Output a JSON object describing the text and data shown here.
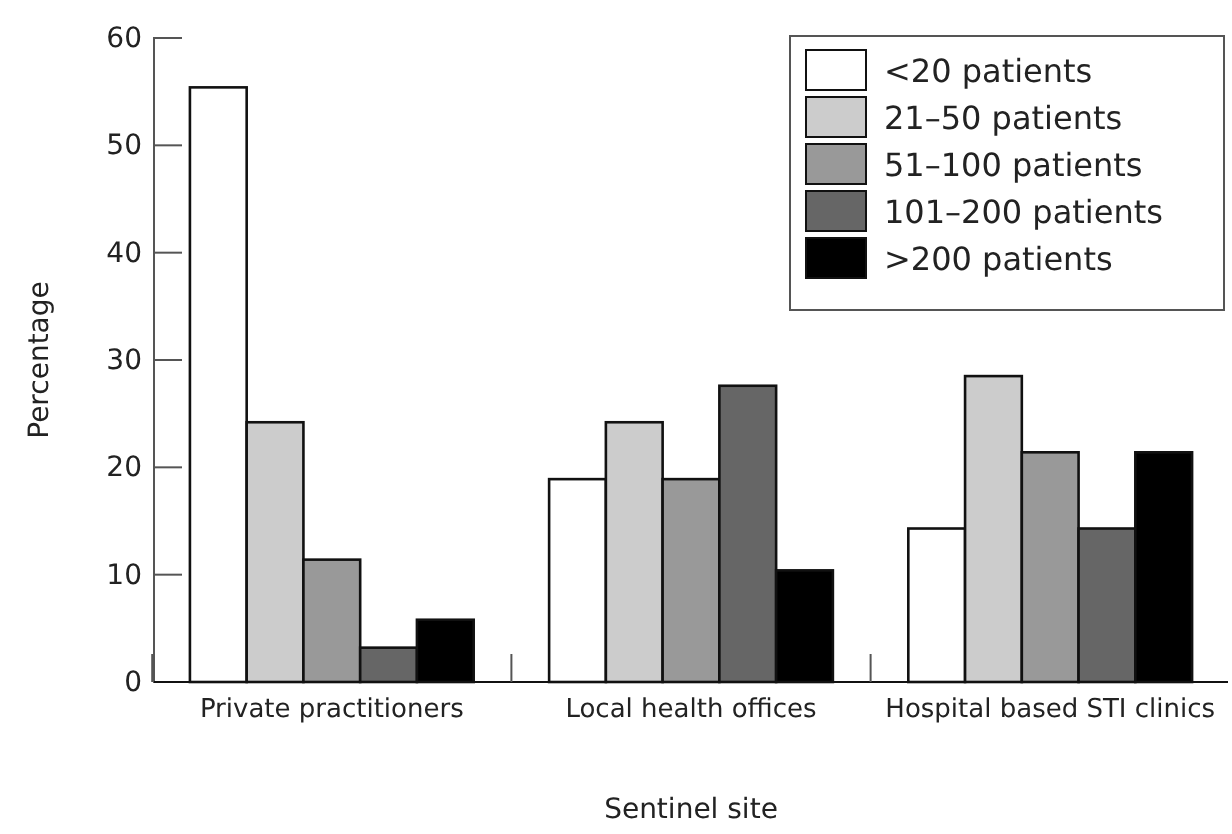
{
  "chart_data": {
    "type": "bar",
    "xlabel": "Sentinel site",
    "ylabel": "Percentage",
    "categories": [
      "Private practitioners",
      "Local health offices",
      "Hospital based STI clinics"
    ],
    "series": [
      {
        "name": "<20 patients",
        "color": "#ffffff",
        "values": [
          55.4,
          18.9,
          14.3
        ]
      },
      {
        "name": "21–50 patients",
        "color": "#cccccc",
        "values": [
          24.2,
          24.2,
          28.5
        ]
      },
      {
        "name": "51–100 patients",
        "color": "#999999",
        "values": [
          11.4,
          18.9,
          21.4
        ]
      },
      {
        "name": "101–200 patients",
        "color": "#666666",
        "values": [
          3.2,
          27.6,
          14.3
        ]
      },
      {
        "name": ">200 patients",
        "color": "#000000",
        "values": [
          5.8,
          10.4,
          21.4
        ]
      }
    ],
    "ylim": [
      0,
      60
    ],
    "yticks": [
      0,
      10,
      20,
      30,
      40,
      50,
      60
    ],
    "grid": false,
    "legend": "top right"
  }
}
